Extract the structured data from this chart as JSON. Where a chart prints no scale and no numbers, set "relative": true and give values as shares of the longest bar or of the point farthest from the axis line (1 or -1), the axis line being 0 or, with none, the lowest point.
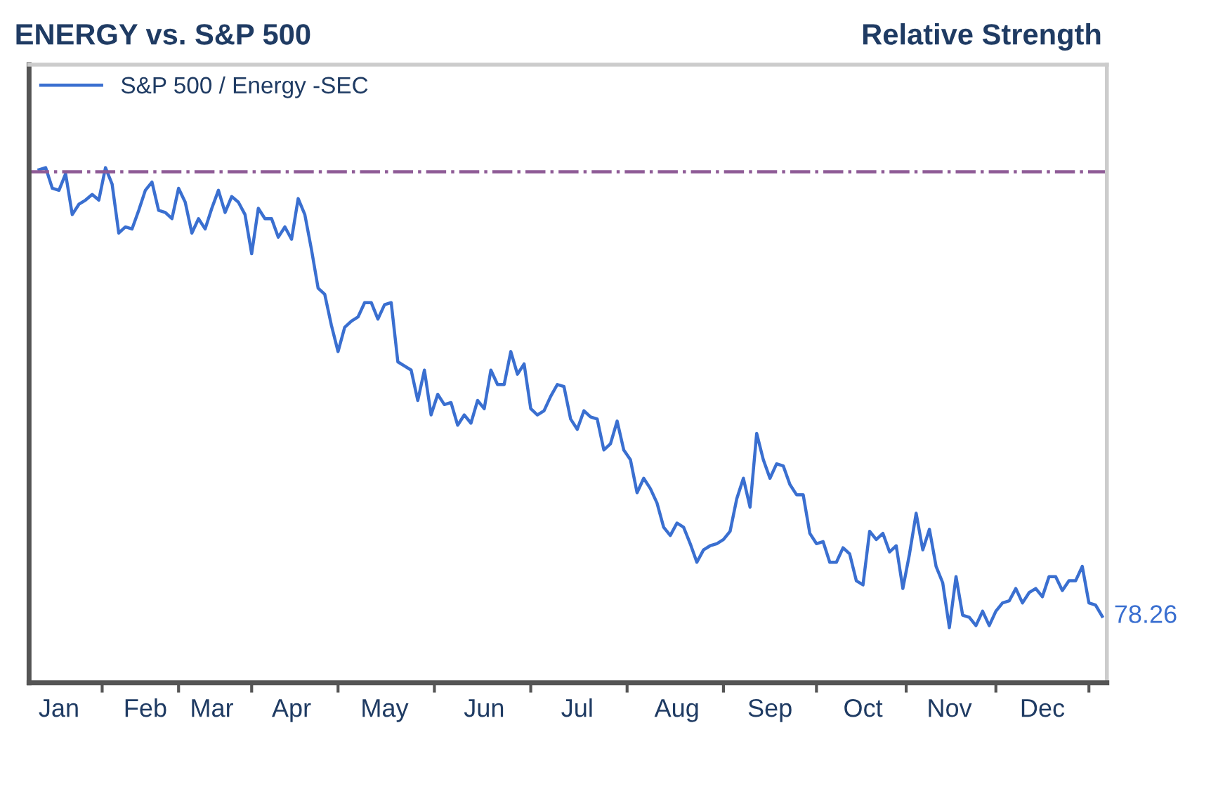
{
  "chart_data": {
    "type": "line",
    "title": "ENERGY vs. S&P 500",
    "subtitle": "Relative Strength",
    "relative": true,
    "categories": [
      null,
      null,
      null,
      "Jan",
      null,
      null,
      null,
      null,
      null,
      null,
      null,
      null,
      null,
      null,
      null,
      null,
      "Feb",
      null,
      null,
      null,
      null,
      null,
      null,
      null,
      null,
      null,
      "Mar",
      null,
      null,
      null,
      null,
      null,
      null,
      null,
      null,
      null,
      null,
      null,
      "Apr",
      null,
      null,
      null,
      null,
      null,
      null,
      null,
      null,
      null,
      null,
      null,
      null,
      null,
      "May",
      null,
      null,
      null,
      null,
      null,
      null,
      null,
      null,
      null,
      null,
      null,
      null,
      null,
      null,
      "Jun",
      null,
      null,
      null,
      null,
      null,
      null,
      null,
      null,
      null,
      null,
      null,
      null,
      null,
      "Jul",
      null,
      null,
      null,
      null,
      null,
      null,
      null,
      null,
      null,
      null,
      null,
      null,
      null,
      null,
      "Aug",
      null,
      null,
      null,
      null,
      null,
      null,
      null,
      null,
      null,
      null,
      null,
      null,
      null,
      "Sep",
      null,
      null,
      null,
      null,
      null,
      null,
      null,
      null,
      null,
      null,
      null,
      null,
      null,
      "Oct",
      null,
      null,
      null,
      null,
      null,
      null,
      null,
      null,
      null,
      null,
      null,
      null,
      "Nov",
      null,
      null,
      null,
      null,
      null,
      null,
      null,
      null,
      null,
      null,
      null,
      null,
      null,
      "Dec",
      null,
      null,
      null,
      null,
      null,
      null,
      null,
      null,
      null
    ],
    "series": [
      {
        "name": "S&P 500 / Energy -SEC",
        "color": "#3a6fd0",
        "values": [
          0.996,
          1.0,
          0.96,
          0.956,
          0.988,
          0.909,
          0.929,
          0.937,
          0.948,
          0.937,
          1.0,
          0.968,
          0.873,
          0.885,
          0.881,
          0.917,
          0.956,
          0.972,
          0.917,
          0.913,
          0.901,
          0.96,
          0.933,
          0.873,
          0.901,
          0.881,
          0.921,
          0.956,
          0.913,
          0.944,
          0.933,
          0.909,
          0.833,
          0.921,
          0.901,
          0.901,
          0.865,
          0.885,
          0.861,
          0.94,
          0.909,
          0.841,
          0.766,
          0.754,
          0.694,
          0.643,
          0.69,
          0.702,
          0.71,
          0.738,
          0.738,
          0.706,
          0.734,
          0.738,
          0.623,
          0.615,
          0.607,
          0.548,
          0.607,
          0.52,
          0.56,
          0.54,
          0.544,
          0.5,
          0.52,
          0.504,
          0.548,
          0.532,
          0.607,
          0.579,
          0.579,
          0.643,
          0.599,
          0.619,
          0.532,
          0.52,
          0.528,
          0.556,
          0.579,
          0.575,
          0.512,
          0.492,
          0.528,
          0.516,
          0.512,
          0.452,
          0.464,
          0.508,
          0.452,
          0.433,
          0.369,
          0.397,
          0.377,
          0.349,
          0.302,
          0.286,
          0.31,
          0.302,
          0.27,
          0.234,
          0.258,
          0.266,
          0.27,
          0.278,
          0.294,
          0.357,
          0.397,
          0.341,
          0.484,
          0.433,
          0.397,
          0.425,
          0.421,
          0.385,
          0.365,
          0.365,
          0.29,
          0.27,
          0.274,
          0.234,
          0.234,
          0.262,
          0.25,
          0.198,
          0.19,
          0.294,
          0.278,
          0.29,
          0.254,
          0.266,
          0.183,
          0.25,
          0.329,
          0.258,
          0.298,
          0.226,
          0.194,
          0.107,
          0.206,
          0.131,
          0.127,
          0.111,
          0.139,
          0.111,
          0.139,
          0.155,
          0.159,
          0.183,
          0.155,
          0.175,
          0.183,
          0.167,
          0.206,
          0.206,
          0.179,
          0.198,
          0.198,
          0.226,
          0.155,
          0.151,
          0.129
        ]
      }
    ],
    "annotations": [
      "78.26"
    ],
    "ref_lines": [
      {
        "axis": "y",
        "value": 0.992,
        "color": "#8e5b96",
        "line_style": "dashdot"
      }
    ],
    "grid": false,
    "legend": "top left",
    "marker": "none",
    "line_style": "solid"
  }
}
